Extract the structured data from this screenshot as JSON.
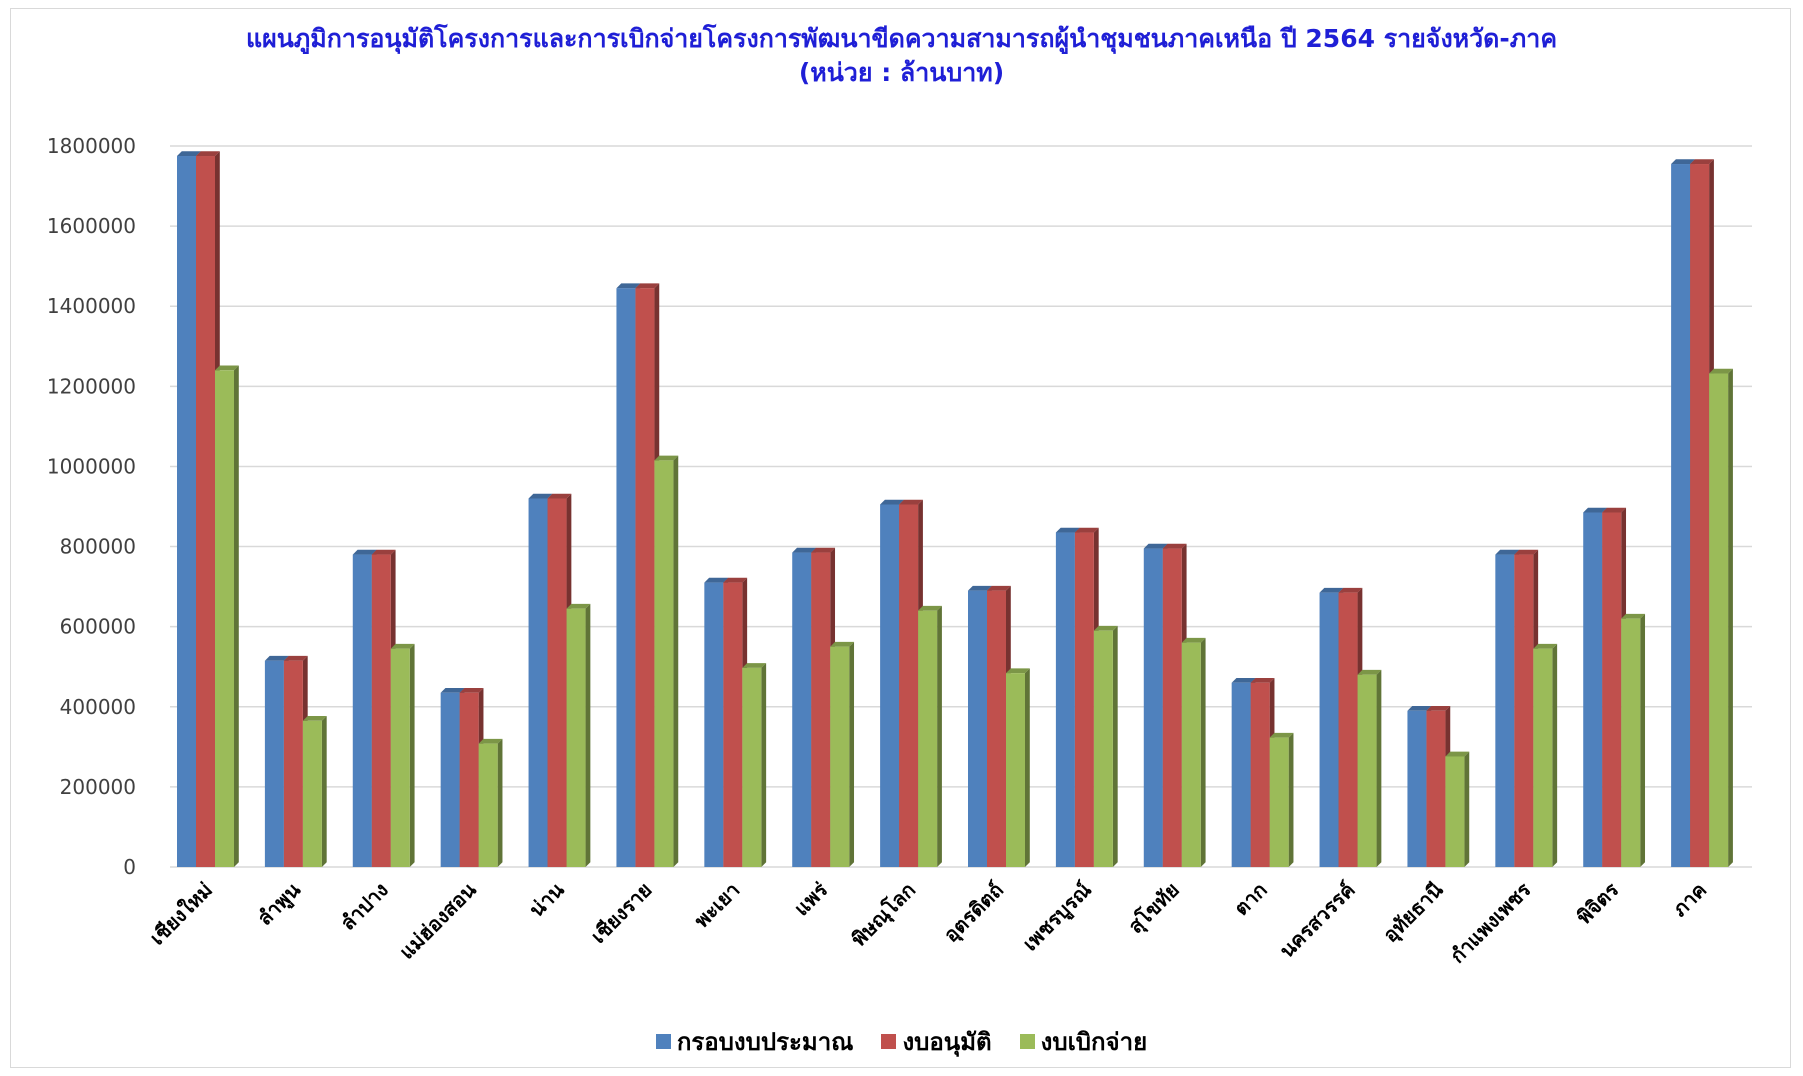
{
  "chart_data": {
    "type": "bar",
    "title": "แผนภูมิการอนุมัติโครงการและการเบิกจ่ายโครงการพัฒนาขีดความสามารถผู้นำชุมชนภาคเหนือ ปี 2564 รายจังหวัด-ภาค",
    "subtitle": "(หน่วย : ล้านบาท)",
    "categories": [
      "เชียงใหม่",
      "ลำพูน",
      "ลำปาง",
      "แม่ฮ่องสอน",
      "น่าน",
      "เชียงราย",
      "พะเยา",
      "แพร่",
      "พิษณุโลก",
      "อุตรดิตถ์",
      "เพชรบูรณ์",
      "สุโขทัย",
      "ตาก",
      "นครสวรรค์",
      "อุทัยธานี",
      "กำแพงเพชร",
      "พิจิตร",
      "ภาค"
    ],
    "series": [
      {
        "name": "กรอบงบประมาณ",
        "color": "#4f81bd",
        "values": [
          1775000,
          515000,
          780000,
          435000,
          920000,
          1445000,
          710000,
          785000,
          905000,
          690000,
          835000,
          795000,
          460000,
          685000,
          390000,
          780000,
          885000,
          1755000
        ]
      },
      {
        "name": "งบอนุมัติ",
        "color": "#c0504d",
        "values": [
          1775000,
          515000,
          780000,
          435000,
          920000,
          1445000,
          710000,
          785000,
          905000,
          690000,
          835000,
          795000,
          460000,
          685000,
          390000,
          780000,
          885000,
          1755000
        ]
      },
      {
        "name": "งบเบิกจ่าย",
        "color": "#9bbb59",
        "values": [
          1240000,
          365000,
          545000,
          308000,
          645000,
          1015000,
          497000,
          550000,
          640000,
          484000,
          590000,
          560000,
          323000,
          480000,
          276000,
          545000,
          620000,
          1232000
        ]
      }
    ],
    "yticks": [
      "0",
      "200000",
      "400000",
      "600000",
      "800000",
      "1000000",
      "1200000",
      "1400000",
      "1600000",
      "1800000"
    ],
    "ylim": [
      0,
      1800000
    ],
    "grid": true,
    "legend_position": "bottom"
  }
}
